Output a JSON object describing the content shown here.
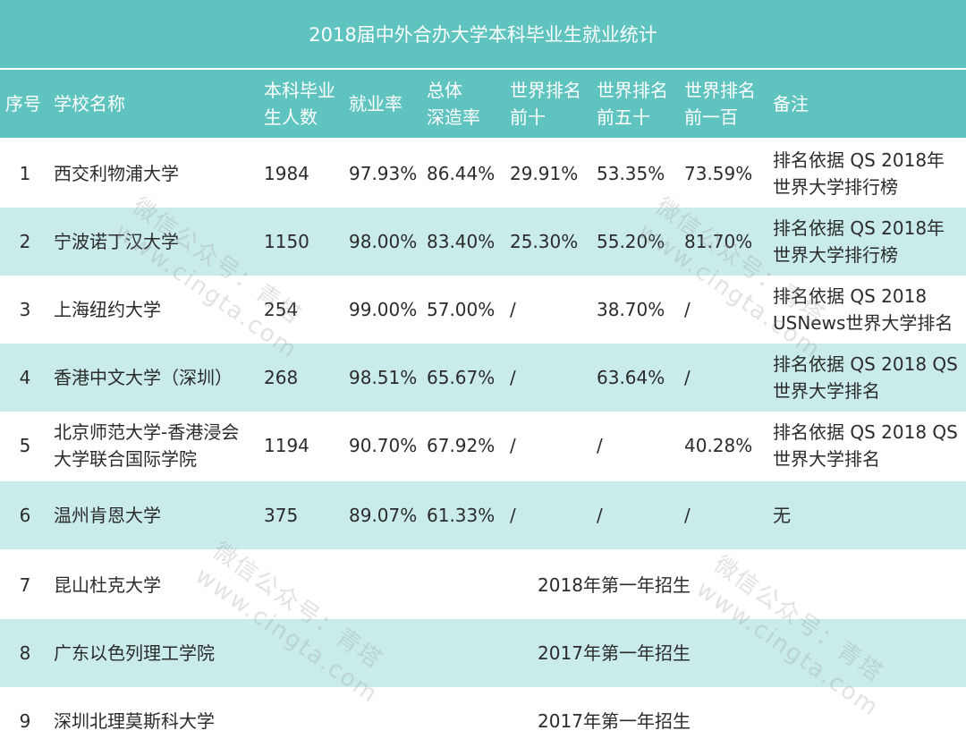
{
  "title": "2018届中外合办大学本科毕业生就业统计",
  "headers": {
    "no": "序号",
    "name": "学校名称",
    "grads": [
      "本科毕业",
      "生人数"
    ],
    "employment": "就业率",
    "further": [
      "总体",
      "深造率"
    ],
    "top10": [
      "世界排名",
      "前十"
    ],
    "top50": [
      "世界排名",
      "前五十"
    ],
    "top100": [
      "世界排名",
      "前一百"
    ],
    "note": "备注"
  },
  "rows": [
    {
      "no": "1",
      "name": [
        "西交利物浦大学"
      ],
      "grads": "1984",
      "employment": "97.93%",
      "further": "86.44%",
      "top10": "29.91%",
      "top50": "53.35%",
      "top100": "73.59%",
      "note": [
        "排名依据 QS 2018年",
        "世界大学排行榜"
      ]
    },
    {
      "no": "2",
      "name": [
        "宁波诺丁汉大学"
      ],
      "grads": "1150",
      "employment": "98.00%",
      "further": "83.40%",
      "top10": "25.30%",
      "top50": "55.20%",
      "top100": "81.70%",
      "note": [
        "排名依据 QS 2018年",
        "世界大学排行榜"
      ]
    },
    {
      "no": "3",
      "name": [
        "上海纽约大学"
      ],
      "grads": "254",
      "employment": "99.00%",
      "further": "57.00%",
      "top10": "/",
      "top50": "38.70%",
      "top100": "/",
      "note": [
        "排名依据 QS 2018",
        "USNews世界大学排名"
      ]
    },
    {
      "no": "4",
      "name": [
        "香港中文大学（深圳）"
      ],
      "grads": "268",
      "employment": "98.51%",
      "further": "65.67%",
      "top10": "/",
      "top50": "63.64%",
      "top100": "/",
      "note": [
        "排名依据 QS 2018 QS",
        "世界大学排名"
      ]
    },
    {
      "no": "5",
      "name": [
        "北京师范大学-香港浸会",
        "大学联合国际学院"
      ],
      "grads": "1194",
      "employment": "90.70%",
      "further": "67.92%",
      "top10": "/",
      "top50": "/",
      "top100": "40.28%",
      "note": [
        "排名依据 QS 2018 QS",
        "世界大学排名"
      ]
    },
    {
      "no": "6",
      "name": [
        "温州肯恩大学"
      ],
      "grads": "375",
      "employment": "89.07%",
      "further": "61.33%",
      "top10": "/",
      "top50": "/",
      "top100": "/",
      "note": [
        "无"
      ]
    }
  ],
  "span_rows": [
    {
      "no": "7",
      "name": "昆山杜克大学",
      "text": "2018年第一年招生"
    },
    {
      "no": "8",
      "name": "广东以色列理工学院",
      "text": "2017年第一年招生"
    },
    {
      "no": "9",
      "name": "深圳北理莫斯科大学",
      "text": "2017年第一年招生"
    }
  ],
  "watermark": [
    "微信公众号：青塔",
    "www.cingta.com"
  ]
}
